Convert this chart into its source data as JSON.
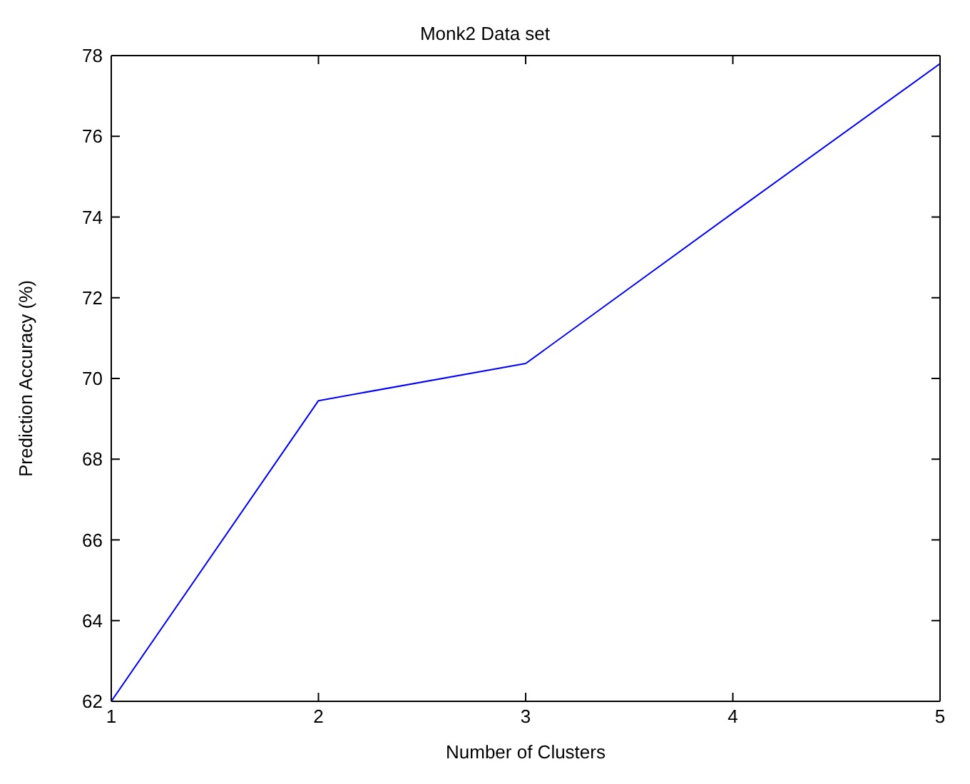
{
  "chart_data": {
    "type": "line",
    "title": "Monk2 Data set",
    "xlabel": "Number of Clusters",
    "ylabel": "Prediction Accuracy (%)",
    "x": [
      1,
      2,
      3,
      4,
      5
    ],
    "series": [
      {
        "color": "#0000ff",
        "values": [
          62,
          69.45,
          70.37,
          74.1,
          77.8
        ]
      }
    ],
    "xlim": [
      1,
      5
    ],
    "xticks": [
      1,
      2,
      3,
      4,
      5
    ],
    "ylim": [
      62,
      78
    ],
    "yticks": [
      62,
      64,
      66,
      68,
      70,
      72,
      74,
      76,
      78
    ],
    "grid": false,
    "legend": false,
    "marker": "none",
    "line_style": "solid"
  }
}
